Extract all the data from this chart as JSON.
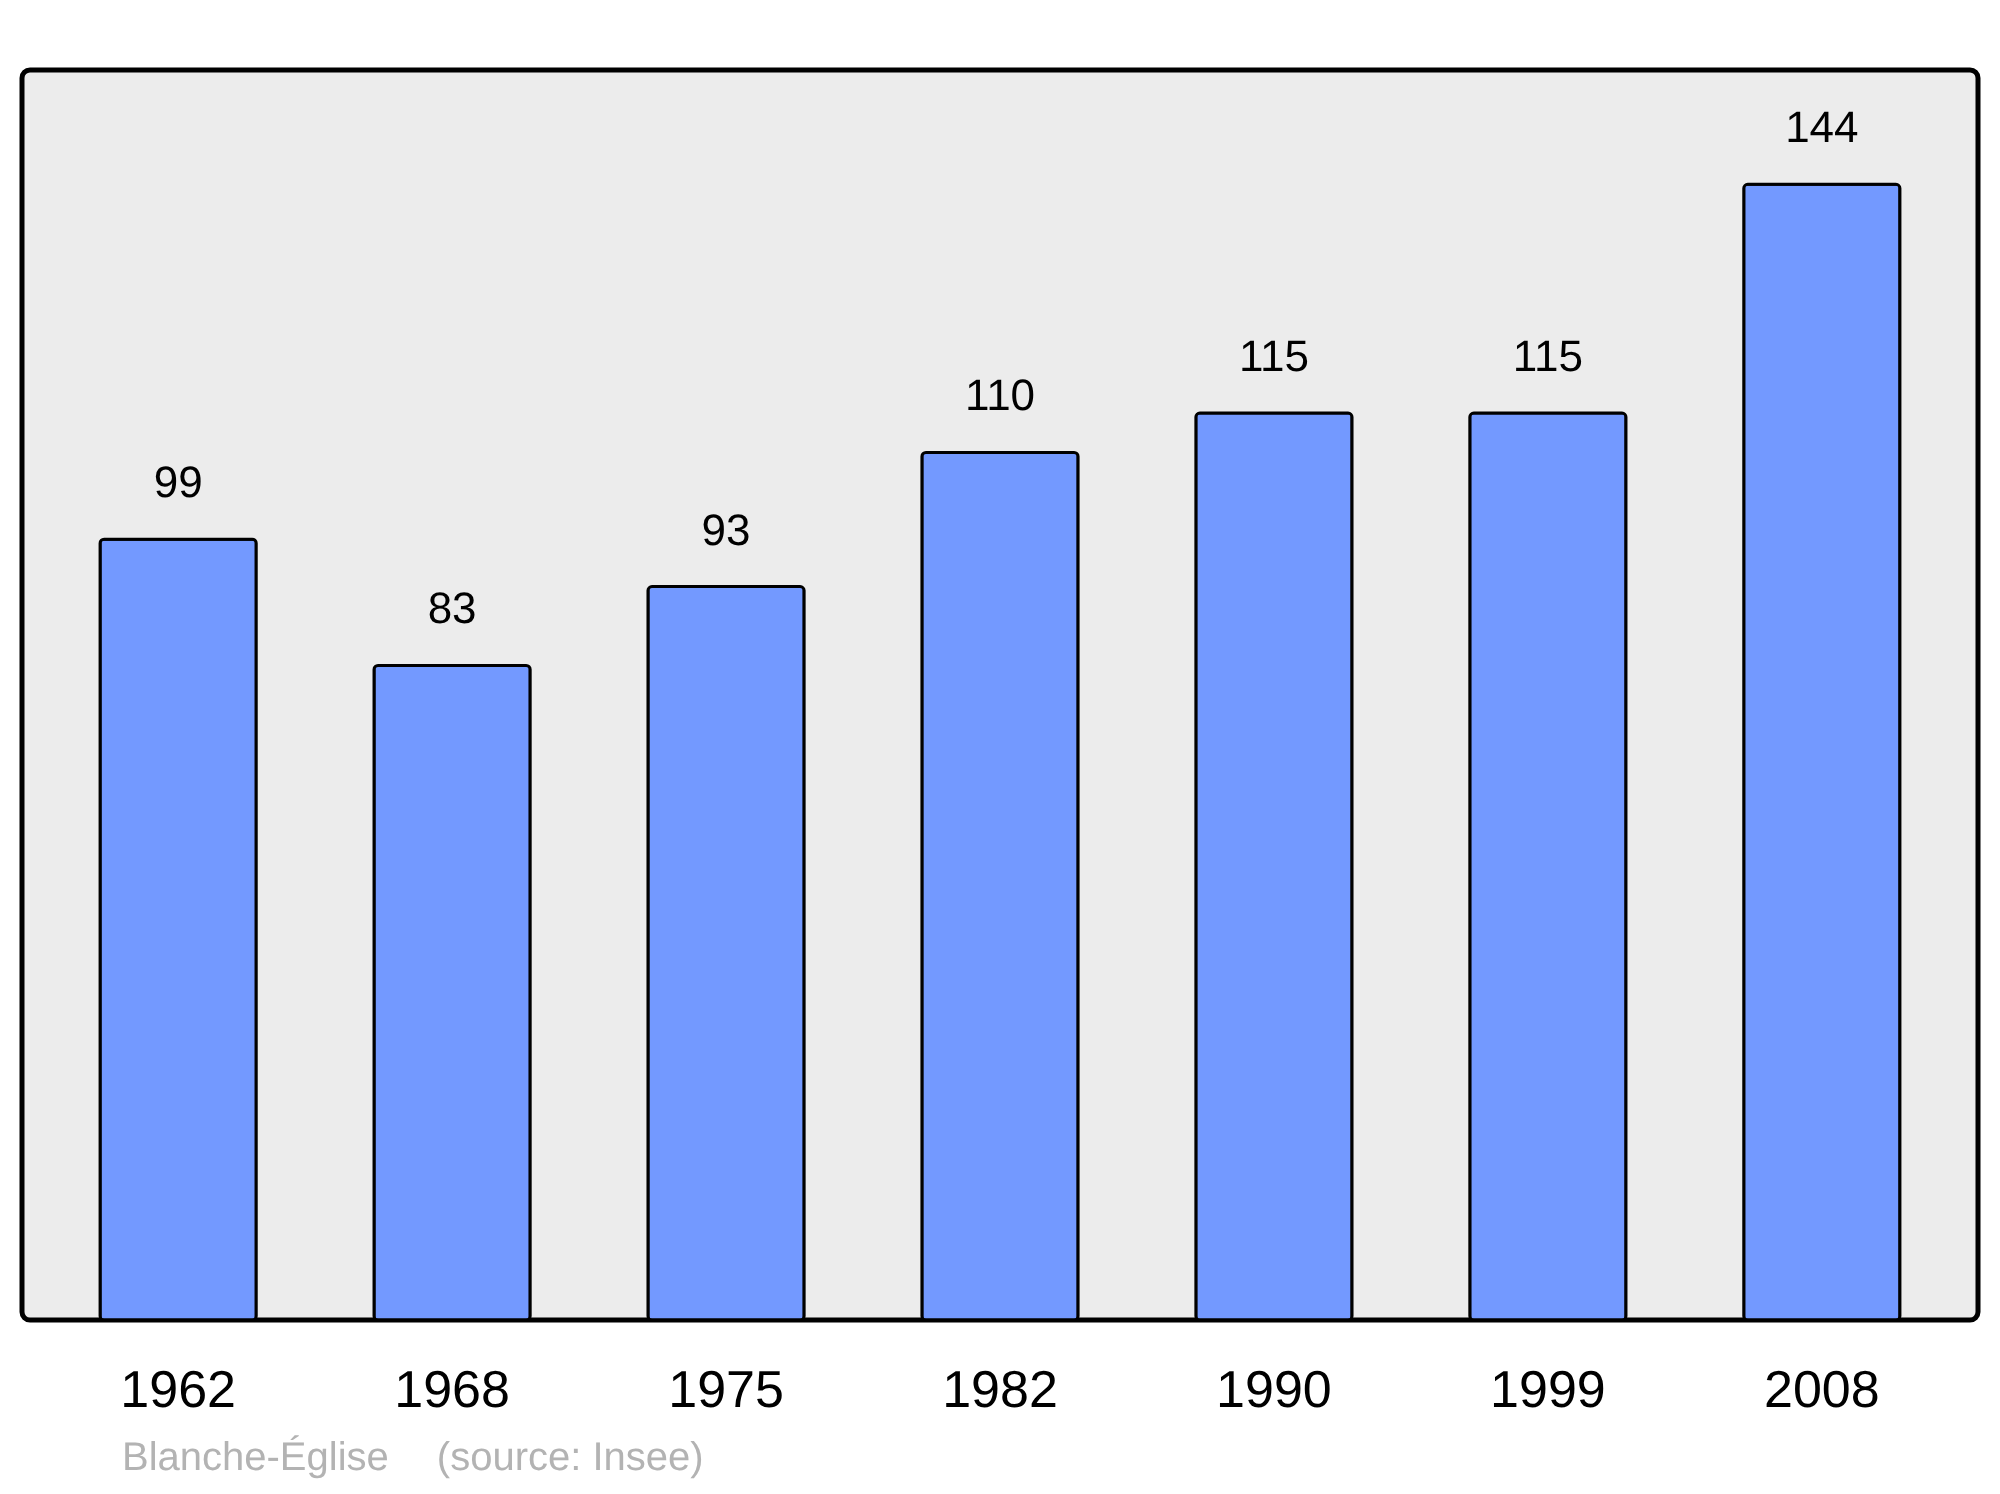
{
  "chart_data": {
    "type": "bar",
    "categories": [
      "1962",
      "1968",
      "1975",
      "1982",
      "1990",
      "1999",
      "2008"
    ],
    "values": [
      99,
      83,
      93,
      110,
      115,
      115,
      144
    ],
    "color": "#7399ff",
    "ylim": [
      0,
      158.5
    ],
    "tick_labels": "x",
    "data_labels": true,
    "annotations": [
      "Blanche-Église",
      "(source: Insee)"
    ]
  }
}
